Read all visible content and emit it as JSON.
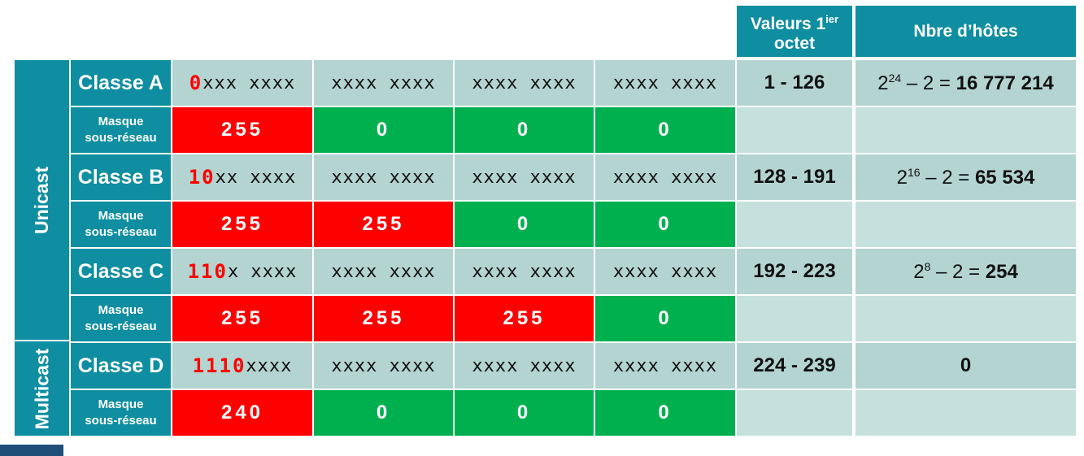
{
  "headers": {
    "valeurs_line1": "Valeurs 1",
    "valeurs_sup": "ier",
    "valeurs_line2": "octet",
    "nbre_hotes": "Nbre d’hôtes"
  },
  "groups": {
    "unicast": "Unicast",
    "multicast": "Multicast"
  },
  "mask_label_line1": "Masque",
  "mask_label_line2": "sous-réseau",
  "rows": [
    {
      "class_label": "Classe A",
      "octet1_lead": "0",
      "octet1_rest": "xxx xxxx",
      "octet2": "xxxx xxxx",
      "octet3": "xxxx xxxx",
      "octet4": "xxxx xxxx",
      "range": "1 - 126",
      "hosts_base": "2",
      "hosts_exp": "24",
      "hosts_op": " – 2 = ",
      "hosts_value": "16 777 214",
      "mask": [
        "255",
        "0",
        "0",
        "0"
      ]
    },
    {
      "class_label": "Classe B",
      "octet1_lead": "10",
      "octet1_rest": "xx xxxx",
      "octet2": "xxxx xxxx",
      "octet3": "xxxx xxxx",
      "octet4": "xxxx xxxx",
      "range": "128 - 191",
      "hosts_base": "2",
      "hosts_exp": "16",
      "hosts_op": " – 2 = ",
      "hosts_value": "65 534",
      "mask": [
        "255",
        "255",
        "0",
        "0"
      ]
    },
    {
      "class_label": "Classe C",
      "octet1_lead": "110",
      "octet1_rest": "x xxxx",
      "octet2": "xxxx xxxx",
      "octet3": "xxxx xxxx",
      "octet4": "xxxx xxxx",
      "range": "192 - 223",
      "hosts_base": "2",
      "hosts_exp": "8",
      "hosts_op": " – 2 = ",
      "hosts_value": "254",
      "mask": [
        "255",
        "255",
        "255",
        "0"
      ]
    },
    {
      "class_label": "Classe D",
      "octet1_lead": "1110",
      "octet1_rest": " xxxx",
      "octet2": "xxxx xxxx",
      "octet3": "xxxx xxxx",
      "octet4": "xxxx xxxx",
      "range": "224 - 239",
      "hosts_value": "0",
      "mask": [
        "240",
        "0",
        "0",
        "0"
      ]
    }
  ],
  "colors": {
    "teal": "#0e8ea0",
    "gray": "#b3d4d0",
    "mask_set": "#ff0000",
    "mask_zero": "#00b04f",
    "lead_bits": "#ff0000"
  }
}
